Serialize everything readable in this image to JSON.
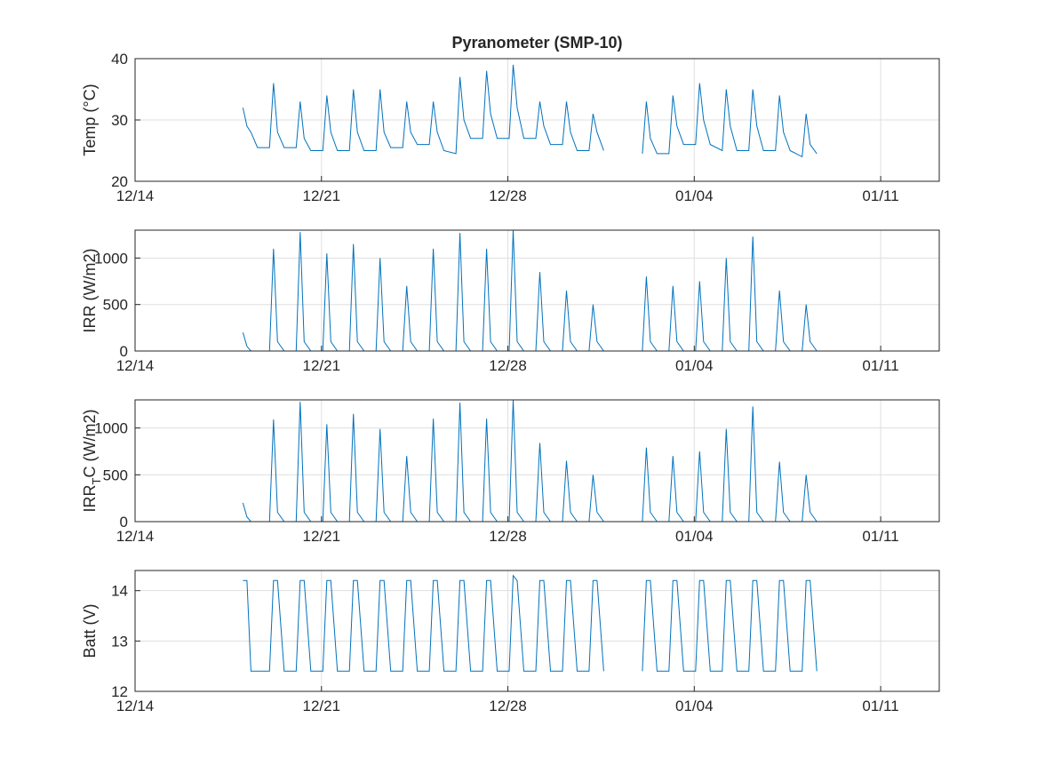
{
  "chart_data": [
    {
      "type": "line",
      "title": "Pyranometer (SMP-10)",
      "ylabel": "Temp (°C)",
      "color": "#0072bd",
      "grid": true,
      "xlim": [
        0,
        30.2
      ],
      "xticks": [
        {
          "value": 0,
          "label": "12/14"
        },
        {
          "value": 7,
          "label": "12/21"
        },
        {
          "value": 14,
          "label": "12/28"
        },
        {
          "value": 21,
          "label": "01/04"
        },
        {
          "value": 28,
          "label": "01/11"
        }
      ],
      "ylim": [
        20,
        40
      ],
      "yticks": [
        20,
        30,
        40
      ],
      "x": [
        4.05,
        4.2,
        4.35,
        4.6,
        5.05,
        5.2,
        5.35,
        5.6,
        6.05,
        6.2,
        6.35,
        6.6,
        7.05,
        7.2,
        7.35,
        7.6,
        8.05,
        8.2,
        8.35,
        8.6,
        9.05,
        9.2,
        9.35,
        9.6,
        10.05,
        10.2,
        10.35,
        10.6,
        11.05,
        11.2,
        11.35,
        11.6,
        12.05,
        12.2,
        12.35,
        12.6,
        13.05,
        13.2,
        13.35,
        13.6,
        14.05,
        14.2,
        14.35,
        14.6,
        15.05,
        15.2,
        15.35,
        15.6,
        16.05,
        16.2,
        16.35,
        16.6,
        17.05,
        17.2,
        17.35,
        17.6,
        18.05,
        18.2,
        18.35,
        18.6,
        19.05,
        19.2,
        19.35,
        19.6,
        20.05,
        20.2,
        20.35,
        20.6,
        21.05,
        21.2,
        21.35,
        21.6,
        22.05,
        22.2,
        22.35,
        22.6,
        23.05,
        23.2,
        23.35,
        23.6,
        24.05,
        24.2,
        24.35,
        24.6,
        25.05,
        25.2,
        25.35,
        25.6
      ],
      "values": [
        32,
        29,
        28,
        25.5,
        25.5,
        36,
        28,
        25.5,
        25.5,
        33,
        27,
        25,
        25,
        34,
        28,
        25,
        25,
        35,
        28,
        25,
        25,
        35,
        28,
        25.5,
        25.5,
        33,
        28,
        26,
        26,
        33,
        28,
        25,
        24.5,
        37,
        30,
        27,
        27,
        38,
        31,
        27,
        27,
        39,
        32,
        27,
        27,
        33,
        29,
        26,
        26,
        33,
        28,
        25,
        25,
        31,
        28,
        25,
        null,
        null,
        null,
        null,
        24.5,
        33,
        27,
        24.5,
        24.5,
        34,
        29,
        26,
        26,
        36,
        30,
        26,
        25,
        35,
        29,
        25,
        25,
        35,
        29,
        25,
        25,
        34,
        28,
        25,
        24,
        31,
        26,
        24.5
      ]
    },
    {
      "type": "line",
      "ylabel": "IRR (W/m2)",
      "color": "#0072bd",
      "grid": true,
      "xlim": [
        0,
        30.2
      ],
      "xticks": [
        {
          "value": 0,
          "label": "12/14"
        },
        {
          "value": 7,
          "label": "12/21"
        },
        {
          "value": 14,
          "label": "12/28"
        },
        {
          "value": 21,
          "label": "01/04"
        },
        {
          "value": 28,
          "label": "01/11"
        }
      ],
      "ylim": [
        0,
        1300
      ],
      "yticks": [
        0,
        500,
        1000
      ],
      "x": [
        4.05,
        4.2,
        4.35,
        4.6,
        5.05,
        5.2,
        5.35,
        5.6,
        6.05,
        6.2,
        6.35,
        6.6,
        7.05,
        7.2,
        7.35,
        7.6,
        8.05,
        8.2,
        8.35,
        8.6,
        9.05,
        9.2,
        9.35,
        9.6,
        10.05,
        10.2,
        10.35,
        10.6,
        11.05,
        11.2,
        11.35,
        11.6,
        12.05,
        12.2,
        12.35,
        12.6,
        13.05,
        13.2,
        13.35,
        13.6,
        14.05,
        14.2,
        14.35,
        14.6,
        15.05,
        15.2,
        15.35,
        15.6,
        16.05,
        16.2,
        16.35,
        16.6,
        17.05,
        17.2,
        17.35,
        17.6,
        18.05,
        18.2,
        18.35,
        18.6,
        19.05,
        19.2,
        19.35,
        19.6,
        20.05,
        20.2,
        20.35,
        20.6,
        21.05,
        21.2,
        21.35,
        21.6,
        22.05,
        22.2,
        22.35,
        22.6,
        23.05,
        23.2,
        23.35,
        23.6,
        24.05,
        24.2,
        24.35,
        24.6,
        25.05,
        25.2,
        25.35,
        25.6
      ],
      "values": [
        200,
        50,
        0,
        0,
        0,
        1100,
        100,
        0,
        0,
        1280,
        100,
        0,
        0,
        1050,
        100,
        0,
        0,
        1150,
        100,
        0,
        0,
        1000,
        100,
        0,
        0,
        700,
        100,
        0,
        0,
        1100,
        100,
        0,
        0,
        1270,
        100,
        0,
        0,
        1100,
        100,
        0,
        0,
        1300,
        100,
        0,
        0,
        850,
        100,
        0,
        0,
        650,
        100,
        0,
        0,
        500,
        100,
        0,
        null,
        null,
        null,
        null,
        0,
        800,
        100,
        0,
        0,
        700,
        100,
        0,
        0,
        750,
        100,
        0,
        0,
        1000,
        100,
        0,
        0,
        1230,
        100,
        0,
        0,
        650,
        100,
        0,
        0,
        500,
        100,
        0
      ]
    },
    {
      "type": "line",
      "ylabel": "IRR_TC (W/m2)",
      "color": "#0072bd",
      "grid": true,
      "xlim": [
        0,
        30.2
      ],
      "xticks": [
        {
          "value": 0,
          "label": "12/14"
        },
        {
          "value": 7,
          "label": "12/21"
        },
        {
          "value": 14,
          "label": "12/28"
        },
        {
          "value": 21,
          "label": "01/04"
        },
        {
          "value": 28,
          "label": "01/11"
        }
      ],
      "ylim": [
        0,
        1300
      ],
      "yticks": [
        0,
        500,
        1000
      ],
      "x": [
        4.05,
        4.2,
        4.35,
        4.6,
        5.05,
        5.2,
        5.35,
        5.6,
        6.05,
        6.2,
        6.35,
        6.6,
        7.05,
        7.2,
        7.35,
        7.6,
        8.05,
        8.2,
        8.35,
        8.6,
        9.05,
        9.2,
        9.35,
        9.6,
        10.05,
        10.2,
        10.35,
        10.6,
        11.05,
        11.2,
        11.35,
        11.6,
        12.05,
        12.2,
        12.35,
        12.6,
        13.05,
        13.2,
        13.35,
        13.6,
        14.05,
        14.2,
        14.35,
        14.6,
        15.05,
        15.2,
        15.35,
        15.6,
        16.05,
        16.2,
        16.35,
        16.6,
        17.05,
        17.2,
        17.35,
        17.6,
        18.05,
        18.2,
        18.35,
        18.6,
        19.05,
        19.2,
        19.35,
        19.6,
        20.05,
        20.2,
        20.35,
        20.6,
        21.05,
        21.2,
        21.35,
        21.6,
        22.05,
        22.2,
        22.35,
        22.6,
        23.05,
        23.2,
        23.35,
        23.6,
        24.05,
        24.2,
        24.35,
        24.6,
        25.05,
        25.2,
        25.35,
        25.6
      ],
      "values": [
        200,
        50,
        0,
        0,
        0,
        1090,
        100,
        0,
        0,
        1280,
        100,
        0,
        0,
        1040,
        100,
        0,
        0,
        1150,
        100,
        0,
        0,
        990,
        100,
        0,
        0,
        700,
        100,
        0,
        0,
        1100,
        100,
        0,
        0,
        1270,
        100,
        0,
        0,
        1100,
        100,
        0,
        0,
        1300,
        100,
        0,
        0,
        840,
        100,
        0,
        0,
        650,
        100,
        0,
        0,
        500,
        100,
        0,
        null,
        null,
        null,
        null,
        0,
        790,
        100,
        0,
        0,
        700,
        100,
        0,
        0,
        750,
        100,
        0,
        0,
        990,
        100,
        0,
        0,
        1230,
        100,
        0,
        0,
        640,
        100,
        0,
        0,
        500,
        100,
        0
      ]
    },
    {
      "type": "line",
      "ylabel": "Batt (V)",
      "color": "#0072bd",
      "grid": true,
      "xlim": [
        0,
        30.2
      ],
      "xticks": [
        {
          "value": 0,
          "label": "12/14"
        },
        {
          "value": 7,
          "label": "12/21"
        },
        {
          "value": 14,
          "label": "12/28"
        },
        {
          "value": 21,
          "label": "01/04"
        },
        {
          "value": 28,
          "label": "01/11"
        }
      ],
      "ylim": [
        12,
        14.4
      ],
      "yticks": [
        12,
        13,
        14
      ],
      "x": [
        4.05,
        4.2,
        4.35,
        4.6,
        5.05,
        5.2,
        5.35,
        5.6,
        6.05,
        6.2,
        6.35,
        6.6,
        7.05,
        7.2,
        7.35,
        7.6,
        8.05,
        8.2,
        8.35,
        8.6,
        9.05,
        9.2,
        9.35,
        9.6,
        10.05,
        10.2,
        10.35,
        10.6,
        11.05,
        11.2,
        11.35,
        11.6,
        12.05,
        12.2,
        12.35,
        12.6,
        13.05,
        13.2,
        13.35,
        13.6,
        14.05,
        14.2,
        14.35,
        14.6,
        15.05,
        15.2,
        15.35,
        15.6,
        16.05,
        16.2,
        16.35,
        16.6,
        17.05,
        17.2,
        17.35,
        17.6,
        18.05,
        18.2,
        18.35,
        18.6,
        19.05,
        19.2,
        19.35,
        19.6,
        20.05,
        20.2,
        20.35,
        20.6,
        21.05,
        21.2,
        21.35,
        21.6,
        22.05,
        22.2,
        22.35,
        22.6,
        23.05,
        23.2,
        23.35,
        23.6,
        24.05,
        24.2,
        24.35,
        24.6,
        25.05,
        25.2,
        25.35,
        25.6
      ],
      "values": [
        14.2,
        14.2,
        12.4,
        12.4,
        12.4,
        14.2,
        14.2,
        12.4,
        12.4,
        14.2,
        14.2,
        12.4,
        12.4,
        14.2,
        14.2,
        12.4,
        12.4,
        14.2,
        14.2,
        12.4,
        12.4,
        14.2,
        14.2,
        12.4,
        12.4,
        14.2,
        14.2,
        12.4,
        12.4,
        14.2,
        14.2,
        12.4,
        12.4,
        14.2,
        14.2,
        12.4,
        12.4,
        14.2,
        14.2,
        12.4,
        12.4,
        14.3,
        14.2,
        12.4,
        12.4,
        14.2,
        14.2,
        12.4,
        12.4,
        14.2,
        14.2,
        12.4,
        12.4,
        14.2,
        14.2,
        12.4,
        null,
        null,
        null,
        null,
        12.4,
        14.2,
        14.2,
        12.4,
        12.4,
        14.2,
        14.2,
        12.4,
        12.4,
        14.2,
        14.2,
        12.4,
        12.4,
        14.2,
        14.2,
        12.4,
        12.4,
        14.2,
        14.2,
        12.4,
        12.4,
        14.2,
        14.2,
        12.4,
        12.4,
        14.2,
        14.2,
        12.4
      ]
    }
  ]
}
